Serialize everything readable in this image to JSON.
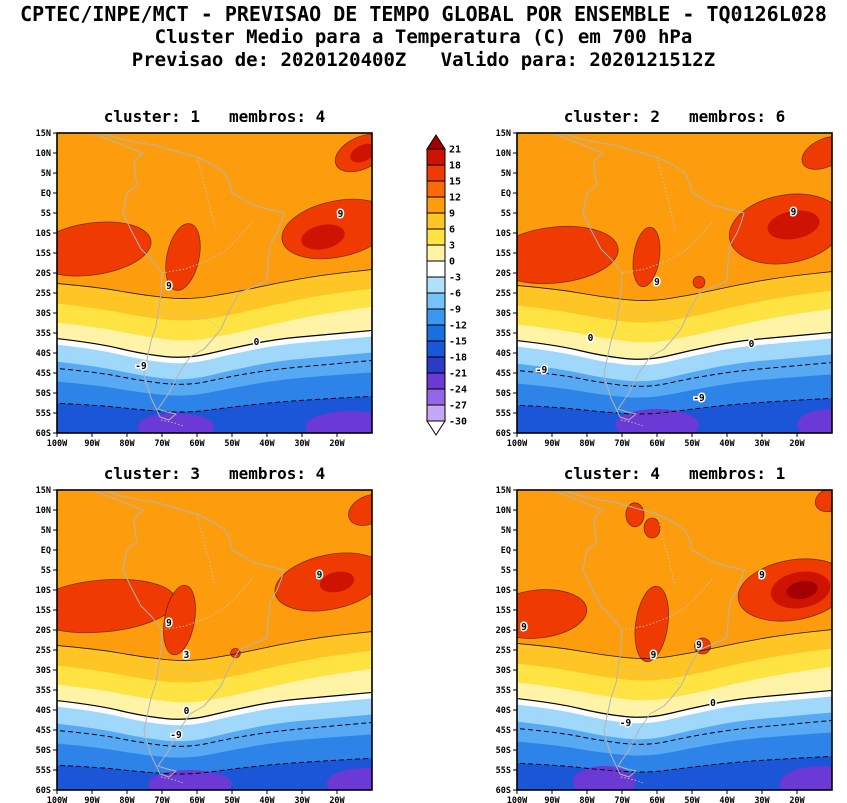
{
  "header": {
    "line1": "CPTEC/INPE/MCT - PREVISAO DE TEMPO GLOBAL POR ENSEMBLE - TQ0126L028",
    "line2": "Cluster Medio para a Temperatura (C) em 700 hPa",
    "line3": "Previsao de: 2020120400Z   Valido para: 2020121512Z"
  },
  "chart_data": {
    "type": "heatmap",
    "variable": "Temperatura (C)",
    "level_hpa": 700,
    "model": "TQ0126L028",
    "init_time": "2020120400Z",
    "valid_time": "2020121512Z",
    "lon_range_w": [
      100,
      10
    ],
    "lat_range": [
      15,
      -60
    ],
    "lat_ticks": [
      "15N",
      "10N",
      "5N",
      "EQ",
      "5S",
      "10S",
      "15S",
      "20S",
      "25S",
      "30S",
      "35S",
      "40S",
      "45S",
      "50S",
      "55S",
      "60S"
    ],
    "lon_ticks": [
      "100W",
      "90W",
      "80W",
      "70W",
      "60W",
      "50W",
      "40W",
      "30W",
      "20W"
    ],
    "colorbar": {
      "tick_values": [
        21,
        18,
        15,
        12,
        9,
        6,
        3,
        0,
        -3,
        -6,
        -9,
        -12,
        -15,
        -18,
        -21,
        -24,
        -27,
        -30
      ],
      "colors": [
        "#a50000",
        "#cf1302",
        "#ef3b02",
        "#fb6a07",
        "#fd9d0d",
        "#fec524",
        "#fee342",
        "#fff3a8",
        "#ffffff",
        "#b0e0fb",
        "#74c2f8",
        "#3b97ef",
        "#1a6fe0",
        "#1b55d8",
        "#2a3bc8",
        "#6b39d6",
        "#9467e6",
        "#c5a8f3",
        "#ffffff"
      ]
    },
    "band_colors": {
      "orange": "#fd9d0d",
      "amber": "#fec524",
      "yellow": "#fee342",
      "cream": "#fff3a8",
      "white": "#fdfdfd",
      "ltblue": "#9fd8fa",
      "medblue": "#58a9f3",
      "deepblue": "#2e83e9",
      "navy": "#1b55d8"
    },
    "feature_colors": {
      "15": "#ef3b02",
      "18": "#cf1302",
      "21": "#a50000",
      "-24": "#6b39d6"
    },
    "panels": [
      {
        "title": "cluster: 1   membros: 4",
        "cluster": 1,
        "membros": 4,
        "contour_labels": [
          {
            "text": "9",
            "lon": 68,
            "lat": -24
          },
          {
            "text": "9",
            "lon": 19,
            "lat": -6
          },
          {
            "text": "0",
            "lon": 43,
            "lat": -38
          },
          {
            "text": "-9",
            "lon": 76,
            "lat": -44
          }
        ],
        "warm_features": [
          [
            90,
            -14,
            17,
            6.5,
            -8,
            "15"
          ],
          [
            64,
            -16,
            4.6,
            8.5,
            12,
            "15"
          ],
          [
            20,
            -9,
            16,
            7,
            -12,
            "15"
          ],
          [
            24,
            -11,
            6.3,
            3,
            -12,
            "18"
          ],
          [
            13,
            10,
            8,
            4,
            -25,
            "15"
          ],
          [
            12.5,
            10,
            4,
            2,
            -25,
            "18"
          ]
        ],
        "cold_features": [
          [
            66,
            -58.5,
            11,
            3.5,
            0,
            "-24"
          ],
          [
            16,
            -58.5,
            13,
            4,
            0,
            "-24"
          ]
        ]
      },
      {
        "title": "cluster: 2   membros: 6",
        "cluster": 2,
        "membros": 6,
        "contour_labels": [
          {
            "text": "9",
            "lon": 60,
            "lat": -23
          },
          {
            "text": "9",
            "lon": 21,
            "lat": -5.5
          },
          {
            "text": "0",
            "lon": 79,
            "lat": -37
          },
          {
            "text": "0",
            "lon": 33,
            "lat": -38.5
          },
          {
            "text": "-9",
            "lon": 93,
            "lat": -45
          },
          {
            "text": "-9",
            "lon": 48,
            "lat": -52
          }
        ],
        "warm_features": [
          [
            89,
            -15.5,
            18,
            7,
            -6,
            "15"
          ],
          [
            63,
            -16,
            3.7,
            7.5,
            8,
            "15"
          ],
          [
            48,
            -22.3,
            1.7,
            1.5,
            0,
            "15"
          ],
          [
            23,
            -9,
            16.5,
            8.5,
            -10,
            "15"
          ],
          [
            21,
            -8,
            7.5,
            3.5,
            -10,
            "18"
          ],
          [
            12,
            10,
            7,
            3.5,
            -25,
            "15"
          ]
        ],
        "cold_features": [
          [
            60,
            -58,
            12,
            4,
            0,
            "-24"
          ],
          [
            10,
            -58,
            10,
            4,
            0,
            "-24"
          ]
        ]
      },
      {
        "title": "cluster: 3   membros: 4",
        "cluster": 3,
        "membros": 4,
        "contour_labels": [
          {
            "text": "9",
            "lon": 68,
            "lat": -19
          },
          {
            "text": "3",
            "lon": 63,
            "lat": -27
          },
          {
            "text": "9",
            "lon": 25,
            "lat": -7
          },
          {
            "text": "0",
            "lon": 63,
            "lat": -41
          },
          {
            "text": "-9",
            "lon": 66,
            "lat": -47
          }
        ],
        "warm_features": [
          [
            87,
            -14,
            21,
            6.5,
            -5,
            "15"
          ],
          [
            65,
            -17.5,
            4.3,
            8.8,
            10,
            "15"
          ],
          [
            49,
            -25.8,
            1.4,
            1.2,
            0,
            "15"
          ],
          [
            22,
            -8,
            16,
            6.8,
            -12,
            "15"
          ],
          [
            20,
            -8,
            5,
            2.5,
            -12,
            "18"
          ],
          [
            11,
            10,
            6,
            3.5,
            -25,
            "15"
          ]
        ],
        "cold_features": [
          [
            62,
            -58.5,
            12,
            3.5,
            0,
            "-24"
          ],
          [
            12,
            -58.5,
            11,
            4,
            0,
            "-24"
          ]
        ]
      },
      {
        "title": "cluster: 4   membros: 1",
        "cluster": 4,
        "membros": 1,
        "contour_labels": [
          {
            "text": "9",
            "lon": 98,
            "lat": -20
          },
          {
            "text": "9",
            "lon": 61,
            "lat": -27
          },
          {
            "text": "9",
            "lon": 48,
            "lat": -24.5
          },
          {
            "text": "9",
            "lon": 30,
            "lat": -7
          },
          {
            "text": "0",
            "lon": 44,
            "lat": -39
          },
          {
            "text": "-9",
            "lon": 69,
            "lat": -44
          }
        ],
        "warm_features": [
          [
            94,
            -16,
            14,
            6,
            -6,
            "15"
          ],
          [
            61.5,
            -18.5,
            4.6,
            9.5,
            8,
            "15"
          ],
          [
            47,
            -24,
            2.3,
            2,
            0,
            "15"
          ],
          [
            21,
            -10,
            16,
            7.5,
            -10,
            "15"
          ],
          [
            19,
            -10,
            8.6,
            4.5,
            -10,
            "18"
          ],
          [
            18.5,
            -10,
            4.5,
            2.2,
            -10,
            "21"
          ],
          [
            66.3,
            8.8,
            2.6,
            3,
            0,
            "15"
          ],
          [
            61.4,
            5.5,
            2.3,
            2.5,
            0,
            "15"
          ],
          [
            10.6,
            12.5,
            4.3,
            2.8,
            -20,
            "15"
          ]
        ],
        "cold_features": [
          [
            75,
            -58,
            9,
            4,
            0,
            "-24"
          ],
          [
            13,
            -58.5,
            12,
            4.5,
            0,
            "-24"
          ]
        ]
      }
    ]
  }
}
